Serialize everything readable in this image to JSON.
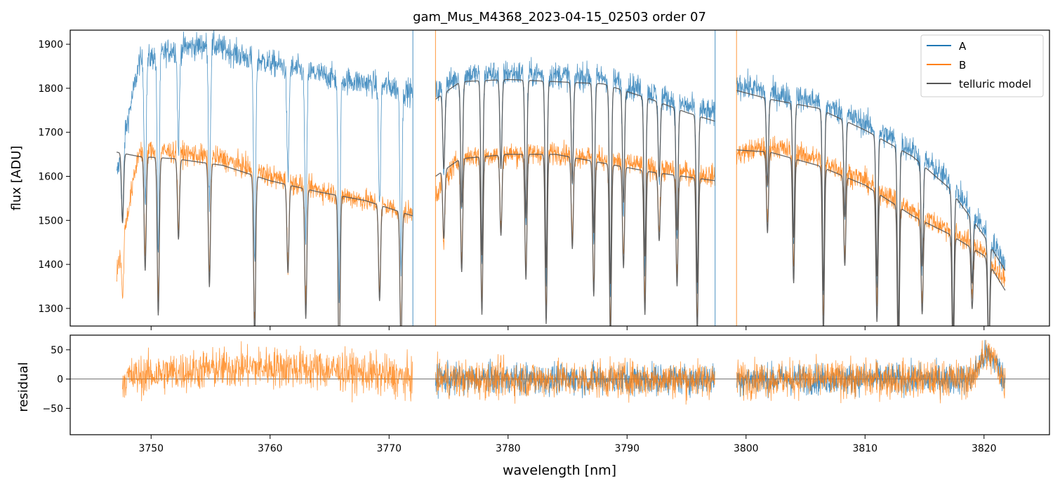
{
  "chart_data": [
    {
      "type": "line",
      "title": "gam_Mus_M4368_2023-04-15_02503  order 07",
      "xlabel": "",
      "ylabel": "flux [ADU]",
      "xlim": [
        3743.2,
        3825.5
      ],
      "ylim": [
        1260,
        1932
      ],
      "yticks": [
        1300,
        1400,
        1500,
        1600,
        1700,
        1800,
        1900
      ],
      "grid": false,
      "legend_position": "top-right",
      "segments": [
        [
          3747.1,
          3772.0
        ],
        [
          3773.9,
          3797.4
        ],
        [
          3799.2,
          3821.8
        ]
      ],
      "series": [
        {
          "name": "A",
          "color": "#1f77b4",
          "x": [
            3747.1,
            3749.0,
            3752.0,
            3755.0,
            3758.0,
            3762.0,
            3766.0,
            3770.0,
            3772.0,
            3773.9,
            3776.0,
            3780.0,
            3784.0,
            3788.0,
            3792.0,
            3795.0,
            3797.4,
            3799.2,
            3802.0,
            3806.0,
            3810.0,
            3814.0,
            3817.0,
            3820.0,
            3821.8
          ],
          "y": [
            1600,
            1860,
            1890,
            1900,
            1870,
            1845,
            1820,
            1805,
            1790,
            1790,
            1830,
            1835,
            1830,
            1825,
            1790,
            1760,
            1740,
            1810,
            1790,
            1770,
            1720,
            1660,
            1590,
            1480,
            1400
          ]
        },
        {
          "name": "B",
          "color": "#ff7f0e",
          "x": [
            3747.1,
            3749.0,
            3752.0,
            3756.0,
            3760.0,
            3764.0,
            3768.0,
            3772.0,
            3773.9,
            3776.0,
            3780.0,
            3784.0,
            3788.0,
            3792.0,
            3797.4,
            3799.2,
            3802.0,
            3806.0,
            3810.0,
            3814.0,
            3817.0,
            3820.0,
            3821.8
          ],
          "y": [
            1380,
            1660,
            1655,
            1640,
            1600,
            1570,
            1545,
            1515,
            1560,
            1645,
            1650,
            1655,
            1640,
            1620,
            1600,
            1650,
            1670,
            1640,
            1590,
            1520,
            1480,
            1430,
            1360
          ]
        },
        {
          "name": "telluric model",
          "color": "#555555",
          "x": [
            3747.1,
            3749.0,
            3752.0,
            3756.0,
            3760.0,
            3764.0,
            3768.0,
            3772.0,
            3773.9,
            3776.0,
            3780.0,
            3784.0,
            3788.0,
            3792.0,
            3797.4,
            3799.2,
            3802.0,
            3806.0,
            3810.0,
            3814.0,
            3817.0,
            3820.0,
            3821.8
          ],
          "y": [
            1655,
            1645,
            1640,
            1625,
            1590,
            1565,
            1545,
            1510,
            1600,
            1640,
            1650,
            1650,
            1630,
            1610,
            1590,
            1660,
            1655,
            1625,
            1580,
            1510,
            1470,
            1420,
            1340
          ]
        }
      ],
      "absorption_lines_nm": [
        3747.6,
        3749.5,
        3750.6,
        3752.3,
        3754.9,
        3758.7,
        3761.5,
        3763.0,
        3765.8,
        3769.2,
        3771.0,
        3774.6,
        3776.1,
        3777.8,
        3779.4,
        3781.5,
        3783.2,
        3785.4,
        3787.2,
        3788.6,
        3789.7,
        3791.5,
        3792.7,
        3794.2,
        3795.9,
        3801.8,
        3804.0,
        3806.5,
        3808.3,
        3811.0,
        3812.8,
        3814.8,
        3817.4,
        3819.0,
        3820.4
      ]
    },
    {
      "type": "line",
      "xlabel": "wavelength [nm]",
      "ylabel": "residual",
      "xlim": [
        3743.2,
        3825.5
      ],
      "ylim": [
        -95,
        75
      ],
      "xticks": [
        3750,
        3760,
        3770,
        3780,
        3790,
        3800,
        3810,
        3820
      ],
      "yticks": [
        -50,
        0,
        50
      ],
      "grid": false,
      "zero_line": true,
      "series": [
        {
          "name": "A",
          "color": "#1f77b4",
          "segments": [
            [
              3773.9,
              3797.4
            ],
            [
              3799.2,
              3821.8
            ]
          ],
          "amplitude": 45
        },
        {
          "name": "B",
          "color": "#ff7f0e",
          "segments": [
            [
              3747.6,
              3772.0
            ],
            [
              3773.9,
              3797.4
            ],
            [
              3799.2,
              3821.8
            ]
          ],
          "amplitude": 55
        }
      ]
    }
  ]
}
